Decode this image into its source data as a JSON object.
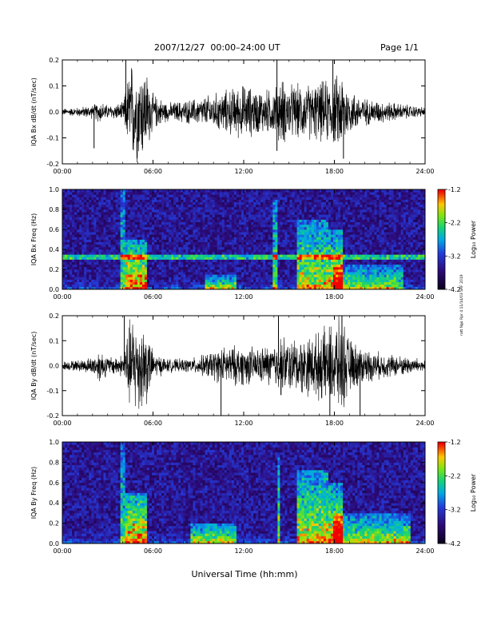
{
  "header": {
    "date_range": "2007/12/27  00:00–24:00 UT",
    "page": "Page 1/1"
  },
  "side_note": "ratt Ngo Rpr 4 11/14/03 SRF 2019",
  "x_axis_label": "Universal Time (hh:mm)",
  "chart_data": [
    {
      "type": "line",
      "ylabel": "IQA Bx dB/dt (nT/sec)",
      "xlim": [
        0,
        24
      ],
      "ylim": [
        -0.2,
        0.2
      ],
      "x_ticks": [
        "00:00",
        "06:00",
        "12:00",
        "18:00",
        "24:00"
      ],
      "y_ticks": [
        "-0.2",
        "-0.1",
        "0.0",
        "0.1",
        "0.2"
      ],
      "color": "#000000",
      "envelope": {
        "hours": [
          0,
          1,
          2,
          2.5,
          3,
          4,
          4.2,
          4.5,
          5,
          5.5,
          6,
          7,
          8,
          9,
          10,
          11,
          12,
          13,
          14,
          14.5,
          15,
          16,
          17,
          18,
          18.5,
          19,
          20,
          21,
          22,
          23,
          24
        ],
        "amplitude": [
          0.015,
          0.02,
          0.03,
          0.05,
          0.03,
          0.04,
          0.1,
          0.22,
          0.22,
          0.2,
          0.08,
          0.04,
          0.05,
          0.06,
          0.08,
          0.1,
          0.12,
          0.1,
          0.1,
          0.15,
          0.12,
          0.12,
          0.13,
          0.15,
          0.18,
          0.1,
          0.06,
          0.05,
          0.04,
          0.03,
          0.02
        ]
      },
      "spikes": [
        {
          "hour": 2.1,
          "value": -0.14
        },
        {
          "hour": 4.2,
          "value": 0.22
        },
        {
          "hour": 14.2,
          "value": 0.22
        },
        {
          "hour": 14.2,
          "value": -0.15
        },
        {
          "hour": 17.9,
          "value": 0.22
        },
        {
          "hour": 18.6,
          "value": -0.18
        }
      ]
    },
    {
      "type": "heatmap",
      "ylabel": "IQA Bx Freq (Hz)",
      "xlim": [
        0,
        24
      ],
      "ylim": [
        0,
        1
      ],
      "x_ticks": [
        "00:00",
        "06:00",
        "12:00",
        "18:00",
        "24:00"
      ],
      "y_ticks": [
        "0.0",
        "0.2",
        "0.4",
        "0.6",
        "0.8",
        "1.0"
      ],
      "colorbar": {
        "label": "Log₁₀ Power",
        "range": [
          -4.2,
          -1.2
        ],
        "ticks": [
          "-1.2",
          "-2.2",
          "-3.2",
          "-4.2"
        ]
      },
      "bands": [
        {
          "freq": 0.33,
          "strength": 0.45
        }
      ],
      "events": [
        {
          "start": 3.9,
          "end": 4.1,
          "freq_max": 1.0,
          "strength": 0.55
        },
        {
          "start": 4.2,
          "end": 5.6,
          "freq_max": 0.5,
          "strength": 0.9
        },
        {
          "start": 9.5,
          "end": 11.5,
          "freq_max": 0.15,
          "strength": 0.6
        },
        {
          "start": 14.0,
          "end": 14.2,
          "freq_max": 0.9,
          "strength": 0.6
        },
        {
          "start": 15.5,
          "end": 17.6,
          "freq_max": 0.7,
          "strength": 0.7
        },
        {
          "start": 17.6,
          "end": 18.5,
          "freq_max": 0.6,
          "strength": 0.8
        },
        {
          "start": 18.0,
          "end": 22.5,
          "freq_max": 0.25,
          "strength": 0.6
        }
      ]
    },
    {
      "type": "line",
      "ylabel": "IQA By dB/dt (nT/sec)",
      "xlim": [
        0,
        24
      ],
      "ylim": [
        -0.2,
        0.2
      ],
      "x_ticks": [
        "00:00",
        "06:00",
        "12:00",
        "18:00",
        "24:00"
      ],
      "y_ticks": [
        "-0.2",
        "-0.1",
        "0.0",
        "0.1",
        "0.2"
      ],
      "color": "#000000",
      "envelope": {
        "hours": [
          0,
          1,
          2,
          2.5,
          3,
          4,
          4.2,
          4.5,
          5,
          5.5,
          6,
          7,
          8,
          9,
          10,
          11,
          12,
          13,
          14,
          14.5,
          15,
          16,
          17,
          18,
          18.5,
          19,
          20,
          21,
          22,
          23,
          24
        ],
        "amplitude": [
          0.02,
          0.025,
          0.04,
          0.08,
          0.04,
          0.05,
          0.12,
          0.22,
          0.22,
          0.2,
          0.06,
          0.03,
          0.03,
          0.04,
          0.07,
          0.09,
          0.09,
          0.08,
          0.1,
          0.14,
          0.12,
          0.13,
          0.15,
          0.2,
          0.22,
          0.12,
          0.08,
          0.06,
          0.05,
          0.04,
          0.03
        ]
      },
      "spikes": [
        {
          "hour": 4.1,
          "value": 0.22
        },
        {
          "hour": 10.5,
          "value": -0.2
        },
        {
          "hour": 14.3,
          "value": 0.2
        },
        {
          "hour": 17.7,
          "value": -0.2
        },
        {
          "hour": 18.5,
          "value": 0.22
        },
        {
          "hour": 19.7,
          "value": -0.2
        }
      ]
    },
    {
      "type": "heatmap",
      "ylabel": "IQA By Freq (Hz)",
      "xlim": [
        0,
        24
      ],
      "ylim": [
        0,
        1
      ],
      "x_ticks": [
        "00:00",
        "06:00",
        "12:00",
        "18:00",
        "24:00"
      ],
      "y_ticks": [
        "0.0",
        "0.2",
        "0.4",
        "0.6",
        "0.8",
        "1.0"
      ],
      "colorbar": {
        "label": "Log₁₀ Power",
        "range": [
          -4.2,
          -1.2
        ],
        "ticks": [
          "-1.2",
          "-2.2",
          "-3.2",
          "-4.2"
        ]
      },
      "bands": [],
      "events": [
        {
          "start": 3.9,
          "end": 4.1,
          "freq_max": 1.0,
          "strength": 0.55
        },
        {
          "start": 4.2,
          "end": 5.6,
          "freq_max": 0.5,
          "strength": 0.9
        },
        {
          "start": 8.5,
          "end": 11.5,
          "freq_max": 0.2,
          "strength": 0.65
        },
        {
          "start": 14.2,
          "end": 14.4,
          "freq_max": 0.9,
          "strength": 0.6
        },
        {
          "start": 15.5,
          "end": 17.6,
          "freq_max": 0.72,
          "strength": 0.75
        },
        {
          "start": 17.6,
          "end": 18.5,
          "freq_max": 0.6,
          "strength": 0.8
        },
        {
          "start": 18.0,
          "end": 23.0,
          "freq_max": 0.3,
          "strength": 0.65
        }
      ]
    }
  ]
}
